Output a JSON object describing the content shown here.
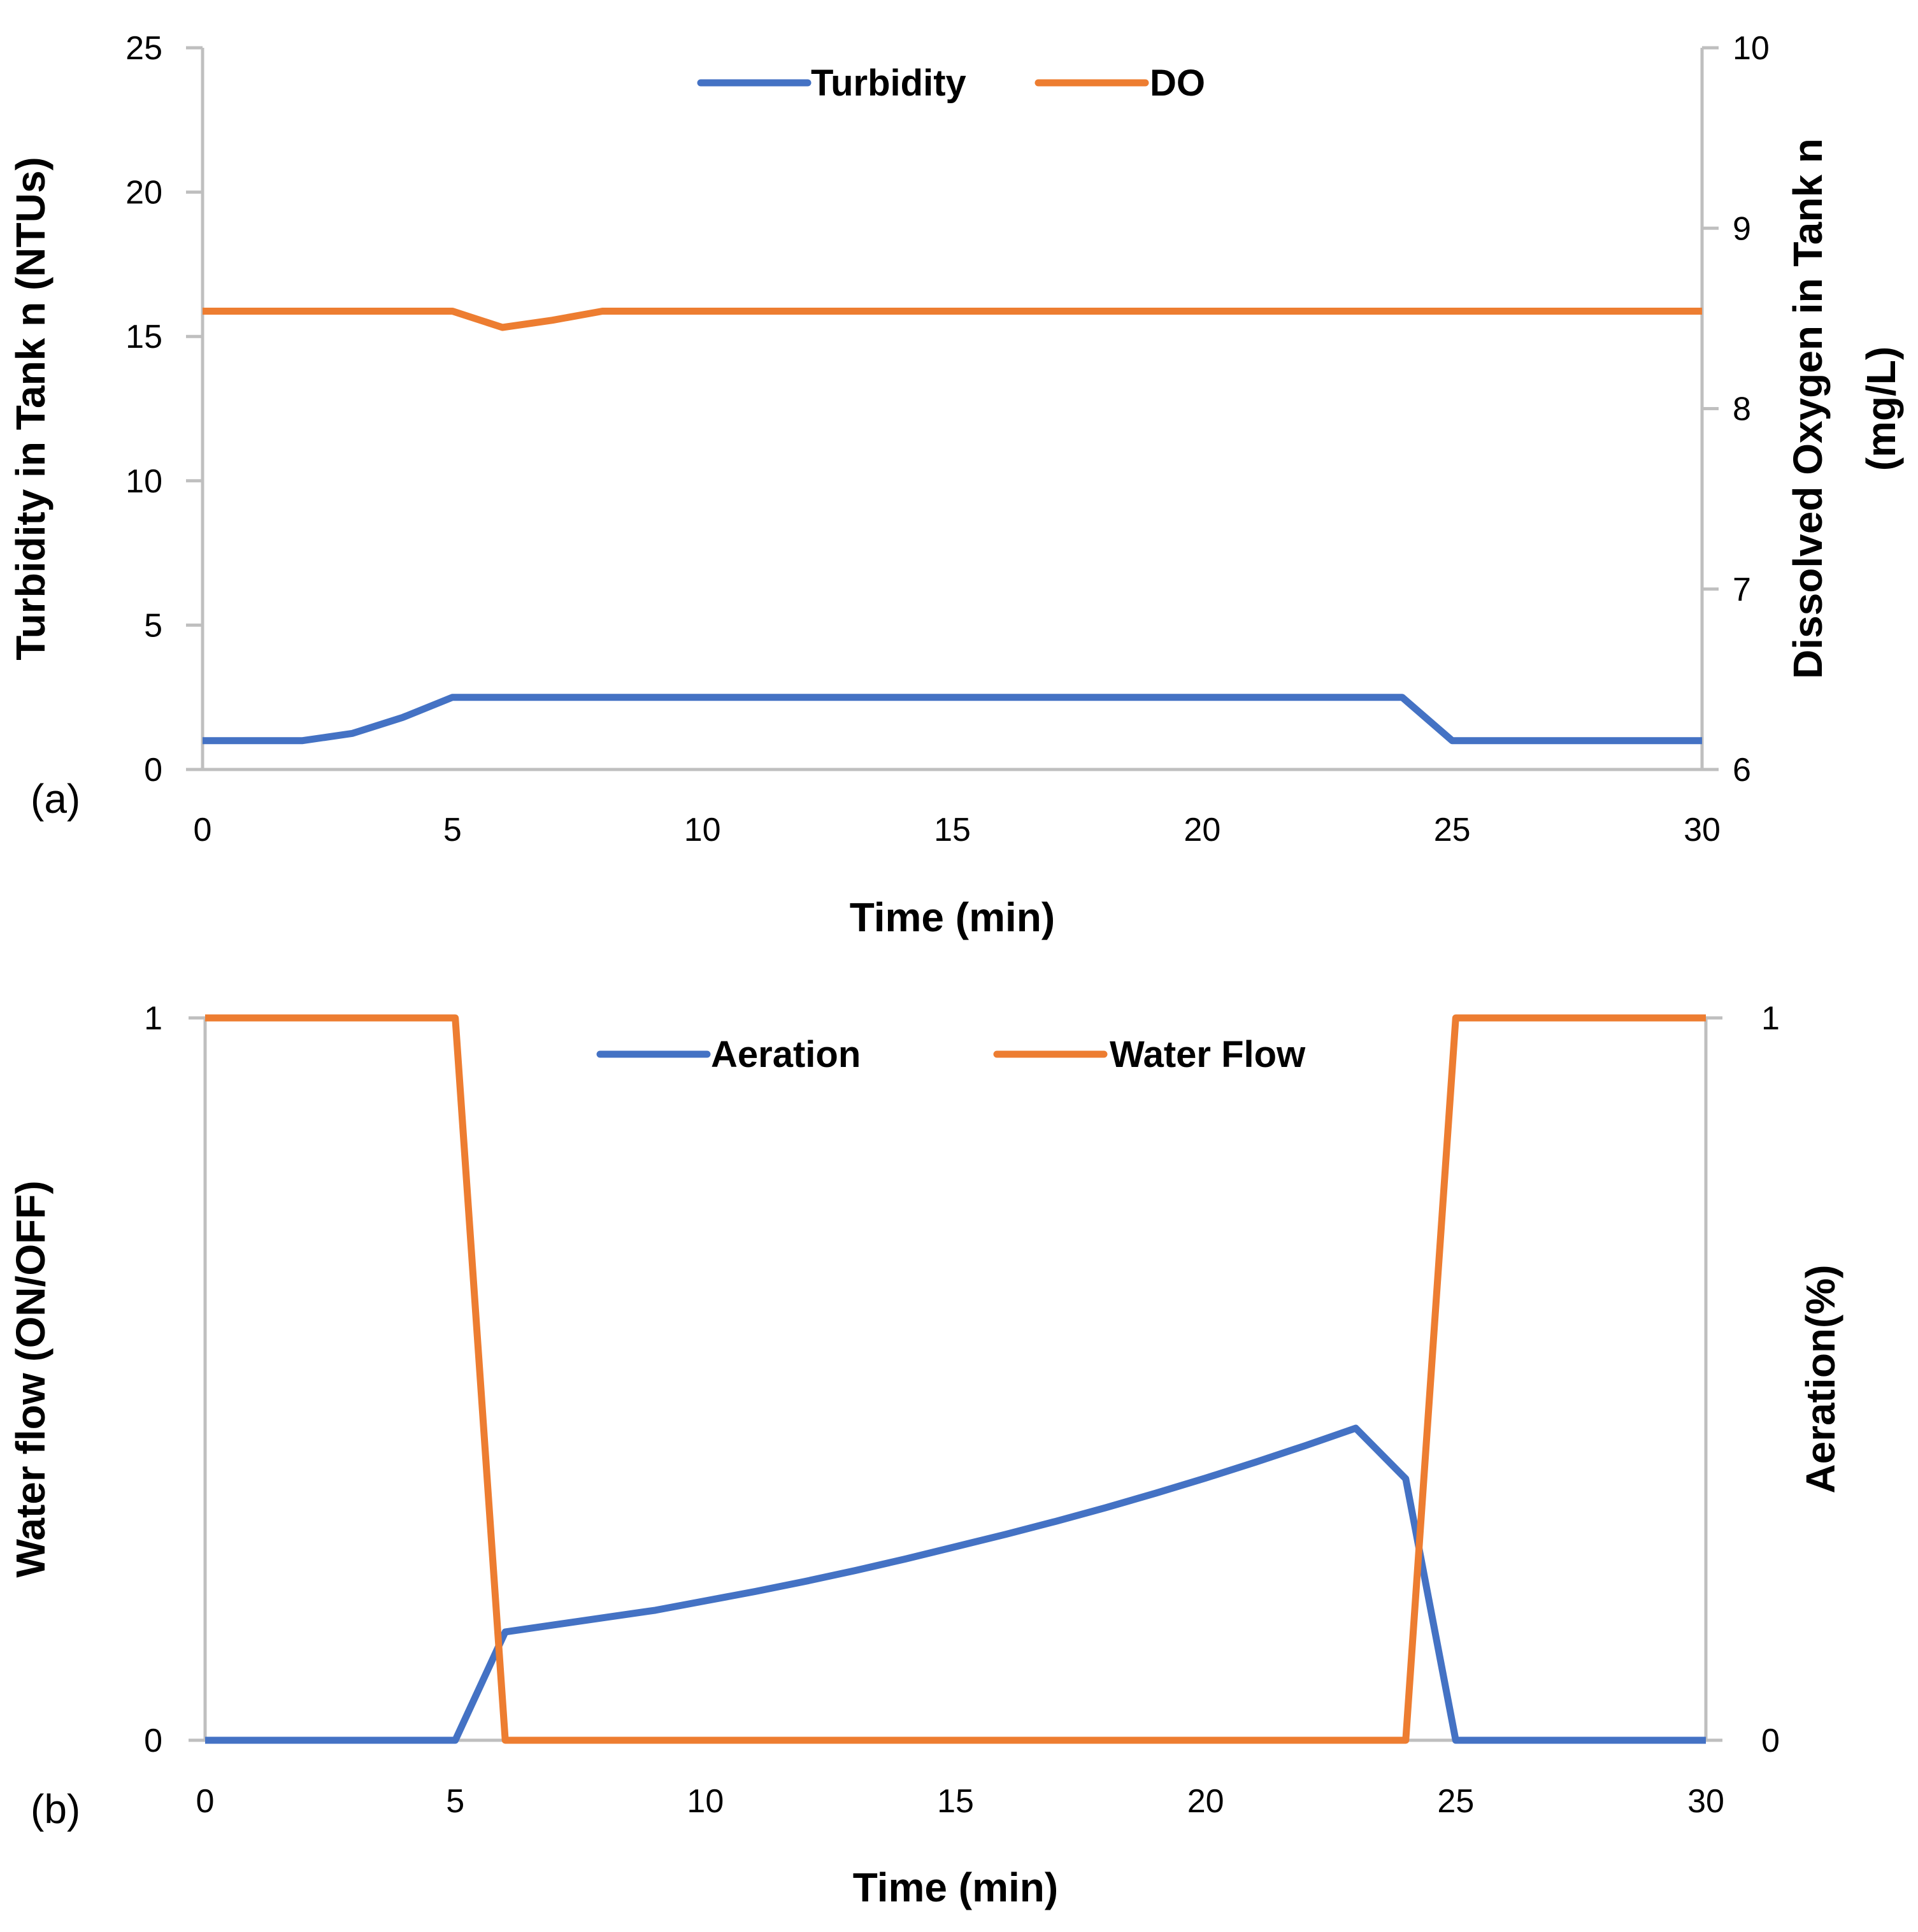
{
  "chart_data": [
    {
      "type": "line",
      "panel_label": "(a)",
      "xlabel": "Time (min)",
      "ylabel": "Turbidity in Tank n (NTUs)",
      "y2label": [
        "Dissolved Oxygen in Tank n",
        "(mg/L)"
      ],
      "xlim": [
        0,
        30
      ],
      "ylim": [
        0,
        25
      ],
      "y2lim": [
        6,
        10
      ],
      "x_ticks": [
        "0",
        "5",
        "10",
        "15",
        "20",
        "25",
        "30"
      ],
      "y_ticks": [
        "0",
        "5",
        "10",
        "15",
        "20",
        "25"
      ],
      "y2_ticks": [
        "6",
        "7",
        "8",
        "9",
        "10"
      ],
      "legend_position": "top-center",
      "series": [
        {
          "name": "Turbidity",
          "axis": "left",
          "color": "#4472C4",
          "x": [
            0,
            1,
            2,
            3,
            4,
            5,
            6,
            7,
            8,
            9,
            10,
            11,
            12,
            13,
            14,
            15,
            16,
            17,
            18,
            19,
            20,
            21,
            22,
            23,
            24,
            25,
            26,
            27,
            28,
            29,
            30
          ],
          "values": [
            1,
            1,
            1,
            1.25,
            1.8,
            2.5,
            2.5,
            2.5,
            2.5,
            2.5,
            2.5,
            2.5,
            2.5,
            2.5,
            2.5,
            2.5,
            2.5,
            2.5,
            2.5,
            2.5,
            2.5,
            2.5,
            2.5,
            2.5,
            2.5,
            1,
            1,
            1,
            1,
            1,
            1
          ]
        },
        {
          "name": "DO",
          "axis": "right",
          "color": "#ED7D31",
          "x": [
            0,
            1,
            2,
            3,
            4,
            5,
            6,
            7,
            8,
            9,
            10,
            11,
            12,
            13,
            14,
            15,
            16,
            17,
            18,
            19,
            20,
            21,
            22,
            23,
            24,
            25,
            26,
            27,
            28,
            29,
            30
          ],
          "values": [
            8.54,
            8.54,
            8.54,
            8.54,
            8.54,
            8.54,
            8.45,
            8.49,
            8.54,
            8.54,
            8.54,
            8.54,
            8.54,
            8.54,
            8.54,
            8.54,
            8.54,
            8.54,
            8.54,
            8.54,
            8.54,
            8.54,
            8.54,
            8.54,
            8.54,
            8.54,
            8.54,
            8.54,
            8.54,
            8.54,
            8.54
          ]
        }
      ]
    },
    {
      "type": "line",
      "panel_label": "(b)",
      "xlabel": "Time (min)",
      "ylabel": "Water flow (ON/OFF)",
      "y2label": [
        "Aeration(%)"
      ],
      "xlim": [
        0,
        30
      ],
      "ylim": [
        0,
        1
      ],
      "y2lim": [
        0,
        1
      ],
      "x_ticks": [
        "0",
        "5",
        "10",
        "15",
        "20",
        "25",
        "30"
      ],
      "y_ticks": [
        "0",
        "1"
      ],
      "y2_ticks": [
        "0",
        "1"
      ],
      "legend_position": "top-center",
      "series": [
        {
          "name": "Aeration",
          "axis": "right",
          "color": "#4472C4",
          "x": [
            0,
            1,
            2,
            3,
            4,
            5,
            6,
            7,
            8,
            9,
            10,
            11,
            12,
            13,
            14,
            15,
            16,
            17,
            18,
            19,
            20,
            21,
            22,
            23,
            24,
            25,
            26,
            27,
            28,
            29,
            30
          ],
          "values": [
            0,
            0,
            0,
            0,
            0,
            0,
            0.15,
            0.16,
            0.17,
            0.18,
            0.193,
            0.206,
            0.22,
            0.235,
            0.251,
            0.268,
            0.285,
            0.303,
            0.322,
            0.342,
            0.363,
            0.385,
            0.408,
            0.432,
            0.362,
            0,
            0,
            0,
            0,
            0,
            0
          ]
        },
        {
          "name": "Water Flow",
          "axis": "left",
          "color": "#ED7D31",
          "x": [
            0,
            1,
            2,
            3,
            4,
            5,
            6,
            7,
            8,
            9,
            10,
            11,
            12,
            13,
            14,
            15,
            16,
            17,
            18,
            19,
            20,
            21,
            22,
            23,
            24,
            25,
            26,
            27,
            28,
            29,
            30
          ],
          "values": [
            1,
            1,
            1,
            1,
            1,
            1,
            0,
            0,
            0,
            0,
            0,
            0,
            0,
            0,
            0,
            0,
            0,
            0,
            0,
            0,
            0,
            0,
            0,
            0,
            0,
            1,
            1,
            1,
            1,
            1,
            1
          ]
        }
      ]
    }
  ]
}
